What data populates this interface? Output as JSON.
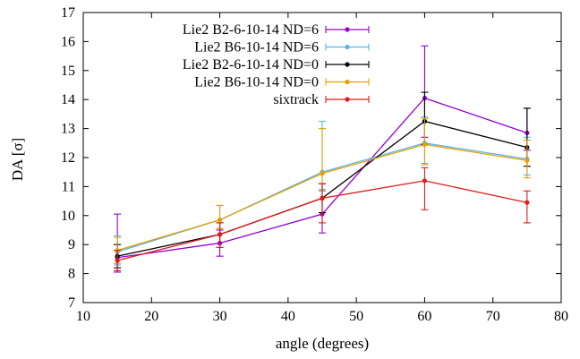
{
  "chart_data": {
    "type": "line",
    "xlabel": "angle (degrees)",
    "ylabel": "DA [σ]",
    "xlim": [
      10,
      80
    ],
    "ylim": [
      7,
      17
    ],
    "xticks": [
      10,
      20,
      30,
      40,
      50,
      60,
      70,
      80
    ],
    "yticks": [
      7,
      8,
      9,
      10,
      11,
      12,
      13,
      14,
      15,
      16,
      17
    ],
    "legend_position": "top-left",
    "grid": false,
    "x": [
      15,
      30,
      45,
      60,
      75
    ],
    "series": [
      {
        "name": "Lie2 B2-6-10-14 ND=6",
        "color": "#9400d3",
        "values": [
          8.55,
          9.05,
          10.05,
          14.05,
          12.85
        ],
        "err_low": [
          0.5,
          0.45,
          0.65,
          1.35,
          0.6
        ],
        "err_high": [
          1.5,
          0.45,
          0.8,
          1.8,
          0.85
        ]
      },
      {
        "name": "Lie2 B6-10-14 ND=6",
        "color": "#56b4e9",
        "values": [
          8.75,
          9.85,
          11.5,
          12.5,
          11.95
        ],
        "err_low": [
          0.45,
          0.3,
          0.6,
          0.7,
          0.55
        ],
        "err_high": [
          0.55,
          0.5,
          1.75,
          0.9,
          0.75
        ]
      },
      {
        "name": "Lie2 B2-6-10-14 ND=0",
        "color": "#000000",
        "values": [
          8.6,
          9.35,
          10.6,
          13.25,
          12.35
        ],
        "err_low": [
          0.4,
          0.45,
          0.5,
          0.8,
          0.65
        ],
        "err_high": [
          0.4,
          0.4,
          0.5,
          1.0,
          1.35
        ]
      },
      {
        "name": "Lie2 B6-10-14 ND=0",
        "color": "#e69f00",
        "values": [
          8.8,
          9.85,
          11.45,
          12.45,
          11.9
        ],
        "err_low": [
          0.45,
          0.3,
          0.6,
          0.7,
          0.6
        ],
        "err_high": [
          0.45,
          0.5,
          1.55,
          0.9,
          0.7
        ]
      },
      {
        "name": "sixtrack",
        "color": "#e41a1c",
        "values": [
          8.45,
          9.35,
          10.6,
          11.2,
          10.45
        ],
        "err_low": [
          0.35,
          0.45,
          0.85,
          1.0,
          0.7
        ],
        "err_high": [
          0.35,
          0.4,
          0.5,
          0.45,
          0.4
        ]
      }
    ]
  }
}
